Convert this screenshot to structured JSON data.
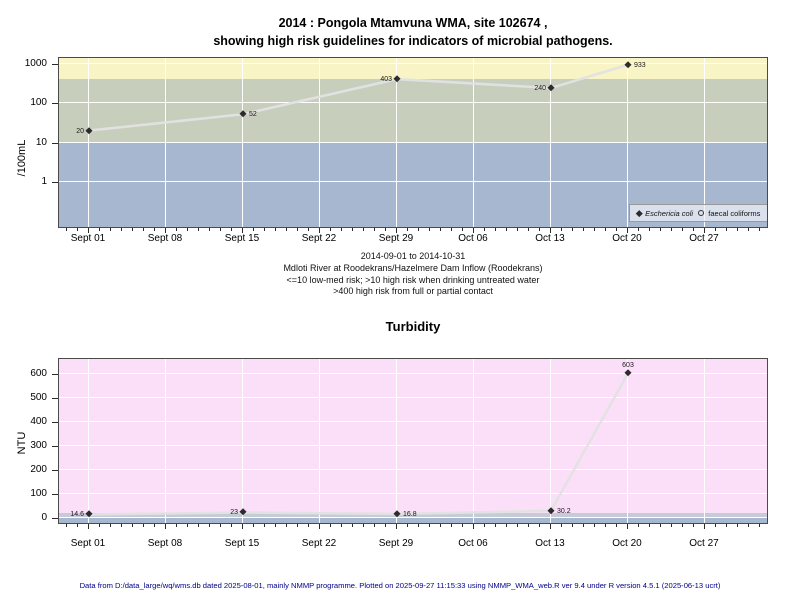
{
  "page": {
    "title_line1": "2014 : Pongola Mtamvuna WMA, site 102674 ,",
    "title_line2": "showing high risk guidelines for indicators of microbial pathogens.",
    "footer": "Data from D:/data_large/wq/wms.db dated 2025-08-01, mainly NMMP programme. Plotted on 2025-09-27 11:15:33 using NMMP_WMA_web.R ver 9.4 under R version 4.5.1 (2025-06-13 ucrt)"
  },
  "chart_data": [
    {
      "type": "line",
      "id": "microbial-indicators",
      "ylabel": "/100mL",
      "yscale": "log",
      "ylim": [
        0.065,
        1200
      ],
      "yticks": [
        1,
        10,
        100,
        1000
      ],
      "xtick_labels": [
        "Sept 01",
        "Sept 08",
        "Sept 15",
        "Sept 22",
        "Sept 29",
        "Oct 06",
        "Oct 13",
        "Oct 20",
        "Oct 27"
      ],
      "xtick_days": [
        0,
        7,
        14,
        21,
        28,
        35,
        42,
        49,
        56
      ],
      "x_day_range": [
        -2,
        61
      ],
      "grid": true,
      "legend_position": "bottom-right",
      "series": [
        {
          "name": "Eschericia coli",
          "marker": "filled-diamond",
          "x_labels": [
            "Sept 01",
            "Sept 15",
            "Sept 29",
            "Oct 13",
            "Oct 20"
          ],
          "x_days": [
            0,
            14,
            28,
            42,
            49
          ],
          "values": [
            20,
            52,
            403,
            240,
            933
          ],
          "label_side": [
            "left",
            "right",
            "left",
            "left",
            "right"
          ]
        },
        {
          "name": "faecal coliforms",
          "marker": "open-circle",
          "x_labels": [],
          "x_days": [],
          "values": [],
          "label_side": []
        }
      ],
      "bands": [
        {
          "y_from": 400,
          "y_to": "top",
          "color": "#f8f4c6",
          "meaning": ">400 high risk from full or partial contact"
        },
        {
          "y_from": 10,
          "y_to": 400,
          "color": "#c7cebb",
          "meaning": ">10 high risk when drinking untreated water"
        },
        {
          "y_from": "bottom",
          "y_to": 10,
          "color": "#a6b7cf",
          "meaning": "<=10 low-med risk"
        }
      ],
      "legend": {
        "items": [
          {
            "label": "Eschericia coli",
            "marker": "filled-diamond",
            "italic": true
          },
          {
            "label": "faecal coliforms",
            "marker": "open-circle",
            "italic": false
          }
        ]
      },
      "caption_lines": [
        "2014-09-01 to 2014-10-31",
        "Mdloti River at Roodekrans/Hazelmere Dam Inflow (Roodekrans)",
        "<=10 low-med risk; >10 high risk when drinking untreated water",
        ">400 high risk from full or partial contact"
      ]
    },
    {
      "type": "line",
      "id": "turbidity",
      "title": "Turbidity",
      "ylabel": "NTU",
      "yscale": "linear",
      "ylim": [
        -30,
        662
      ],
      "yticks": [
        0,
        100,
        200,
        300,
        400,
        500,
        600
      ],
      "xtick_labels": [
        "Sept 01",
        "Sept 08",
        "Sept 15",
        "Sept 22",
        "Sept 29",
        "Oct 06",
        "Oct 13",
        "Oct 20",
        "Oct 27"
      ],
      "xtick_days": [
        0,
        7,
        14,
        21,
        28,
        35,
        42,
        49,
        56
      ],
      "x_day_range": [
        -2,
        61
      ],
      "grid": true,
      "series": [
        {
          "name": "Turbidity",
          "marker": "filled-diamond",
          "x_labels": [
            "Sept 01",
            "Sept 15",
            "Sept 29",
            "Oct 13",
            "Oct 20"
          ],
          "x_days": [
            0,
            14,
            28,
            42,
            49
          ],
          "values": [
            14.6,
            23,
            16.8,
            30.2,
            603
          ],
          "label_side": [
            "left",
            "left",
            "right",
            "right",
            "above"
          ]
        }
      ],
      "bands": [
        {
          "y_from": 20,
          "y_to": "top",
          "color": "#fbdff8",
          "meaning": "above guideline band"
        },
        {
          "y_from": 0,
          "y_to": 20,
          "color": "#c6cbd8",
          "meaning": "guideline band"
        },
        {
          "y_from": "bottom",
          "y_to": 0,
          "color": "#a6b7cf",
          "meaning": "below zero"
        }
      ]
    }
  ],
  "style": {
    "line_color": "#e2e2e2",
    "marker_color": "#2c2c2c",
    "grid_color": "#ffffff",
    "footer_color": "#00008B"
  }
}
